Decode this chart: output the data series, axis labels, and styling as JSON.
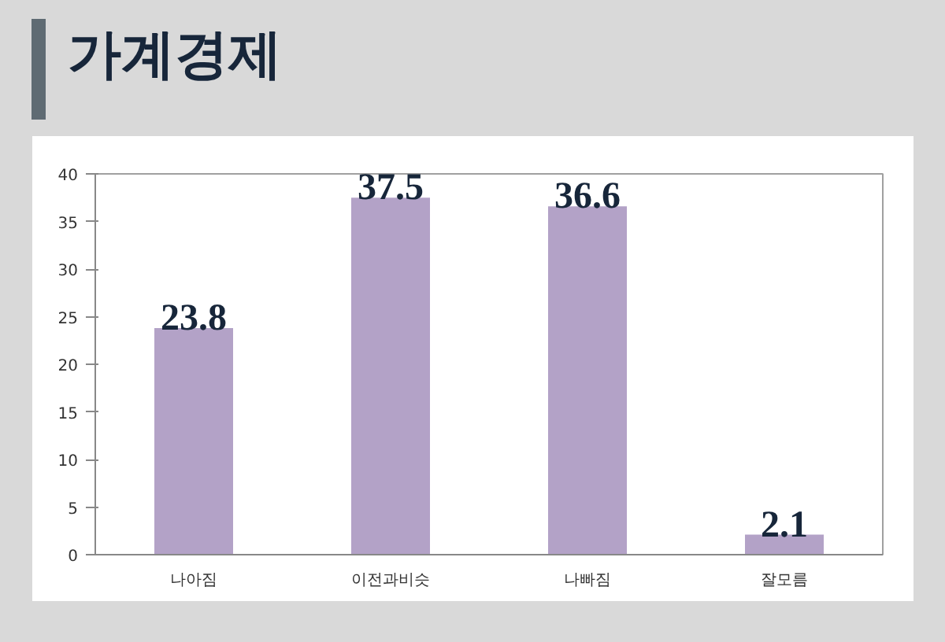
{
  "chart_data": {
    "type": "bar",
    "title": "가계경제",
    "categories": [
      "나아짐",
      "이전과비슷",
      "나빠짐",
      "잘모름"
    ],
    "values": [
      23.8,
      37.5,
      36.6,
      2.1
    ],
    "color": "#b3a2c7",
    "ylim": [
      0,
      40
    ],
    "yticks": [
      0,
      5,
      10,
      15,
      20,
      25,
      30,
      35,
      40
    ],
    "grid": false,
    "data_labels": true
  }
}
